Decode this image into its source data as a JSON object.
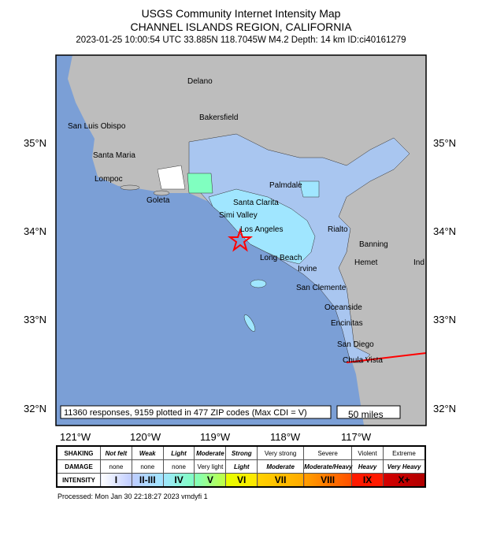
{
  "header": {
    "title": "USGS Community Internet Intensity Map",
    "region": "CHANNEL ISLANDS REGION, CALIFORNIA",
    "event": "2023-01-25 10:00:54 UTC 33.885N 118.7045W M4.2 Depth: 14 km ID:ci40161279"
  },
  "map": {
    "lat_labels": [
      "35°N",
      "34°N",
      "33°N",
      "32°N"
    ],
    "lon_labels": [
      "121°W",
      "120°W",
      "119°W",
      "118°W",
      "117°W"
    ],
    "cities": [
      "Delano",
      "Bakersfield",
      "San Luis Obispo",
      "Santa Maria",
      "Lompoc",
      "Goleta",
      "Palmdale",
      "Santa Clarita",
      "Simi Valley",
      "Los Angeles",
      "Rialto",
      "Banning",
      "Hemet",
      "Ind",
      "Long Beach",
      "Irvine",
      "San Clemente",
      "Oceanside",
      "Encinitas",
      "San Diego",
      "Chula Vista"
    ],
    "summary": "11360 responses, 9159 plotted in 477 ZIP codes (Max CDI = V)",
    "scale_label": "50 miles",
    "epicenter_icon": "star-icon",
    "colors": {
      "ocean": "#7b9fd6",
      "land": "#bdbdbd",
      "epicenter": "#ff0000"
    }
  },
  "legend": {
    "row_labels": [
      "SHAKING",
      "DAMAGE",
      "INTENSITY"
    ],
    "shaking": [
      "Not felt",
      "Weak",
      "Light",
      "Moderate",
      "Strong",
      "Very strong",
      "Severe",
      "Violent",
      "Extreme"
    ],
    "damage": [
      "none",
      "none",
      "none",
      "Very light",
      "Light",
      "Moderate",
      "Moderate/Heavy",
      "Heavy",
      "Very Heavy"
    ],
    "intensity": [
      "I",
      "II-III",
      "IV",
      "V",
      "VI",
      "VII",
      "VIII",
      "IX",
      "X+"
    ],
    "colors": [
      "#ffffff",
      "#bfccff",
      "#a0e6ff",
      "#80ffc0",
      "#ffff00",
      "#ffc800",
      "#ff9100",
      "#ff0000",
      "#c80000"
    ]
  },
  "footer": {
    "processed": "Processed: Mon Jan 30 22:18:27 2023 vmdyfi 1"
  }
}
